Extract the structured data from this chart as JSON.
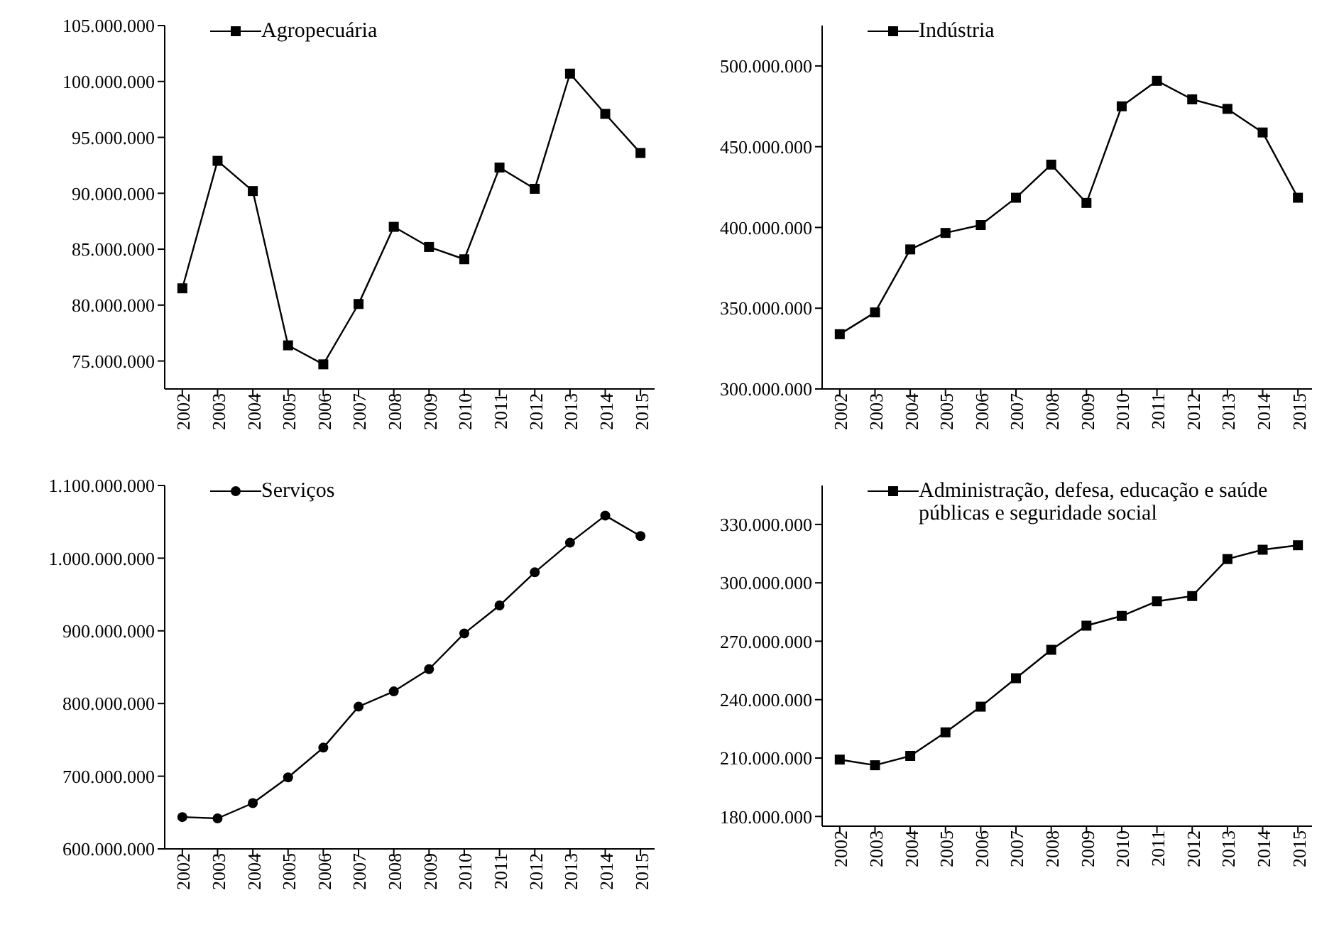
{
  "chart_data": [
    {
      "type": "line",
      "categories": [
        "2002",
        "2003",
        "2004",
        "2005",
        "2006",
        "2007",
        "2008",
        "2009",
        "2010",
        "2011",
        "2012",
        "2013",
        "2014",
        "2015"
      ],
      "series": [
        {
          "name": "Agropecuária",
          "color": "#000000",
          "values": [
            81500000,
            92900000,
            90200000,
            76400000,
            74700000,
            80100000,
            87000000,
            85200000,
            84100000,
            92300000,
            90400000,
            100700000,
            97100000,
            93600000
          ]
        }
      ],
      "ylim": [
        72500000,
        105000000
      ],
      "yticks": [
        {
          "value": 75000000,
          "label": "75.000.000"
        },
        {
          "value": 80000000,
          "label": "80.000.000"
        },
        {
          "value": 85000000,
          "label": "85.000.000"
        },
        {
          "value": 90000000,
          "label": "90.000.000"
        },
        {
          "value": 95000000,
          "label": "95.000.000"
        },
        {
          "value": 100000000,
          "label": "100.000.000"
        },
        {
          "value": 105000000,
          "label": "105.000.000"
        }
      ],
      "grid": false,
      "legend": "top",
      "marker": "square",
      "line_style": "solid"
    },
    {
      "type": "line",
      "categories": [
        "2002",
        "2003",
        "2004",
        "2005",
        "2006",
        "2007",
        "2008",
        "2009",
        "2010",
        "2011",
        "2012",
        "2013",
        "2014",
        "2015"
      ],
      "series": [
        {
          "name": "Indústria",
          "color": "#000000",
          "values": [
            333900000,
            347400000,
            386400000,
            396600000,
            401500000,
            418400000,
            438900000,
            415200000,
            475000000,
            490800000,
            479300000,
            473400000,
            458800000,
            418400000
          ]
        }
      ],
      "ylim": [
        300000000,
        525000000
      ],
      "yticks": [
        {
          "value": 300000000,
          "label": "300.000.000"
        },
        {
          "value": 350000000,
          "label": "350.000.000"
        },
        {
          "value": 400000000,
          "label": "400.000.000"
        },
        {
          "value": 450000000,
          "label": "450.000.000"
        },
        {
          "value": 500000000,
          "label": "500.000.000"
        }
      ],
      "grid": false,
      "legend": "top",
      "marker": "square",
      "line_style": "solid"
    },
    {
      "type": "line",
      "categories": [
        "2002",
        "2003",
        "2004",
        "2005",
        "2006",
        "2007",
        "2008",
        "2009",
        "2010",
        "2011",
        "2012",
        "2013",
        "2014",
        "2015"
      ],
      "series": [
        {
          "name": "Serviços",
          "color": "#000000",
          "values": [
            643800000,
            642000000,
            663000000,
            698400000,
            739300000,
            795700000,
            816700000,
            847300000,
            896500000,
            934900000,
            980500000,
            1021300000,
            1058600000,
            1030400000
          ]
        }
      ],
      "ylim": [
        600000000,
        1100000000
      ],
      "yticks": [
        {
          "value": 600000000,
          "label": "600.000.000"
        },
        {
          "value": 700000000,
          "label": "700.000.000"
        },
        {
          "value": 800000000,
          "label": "800.000.000"
        },
        {
          "value": 900000000,
          "label": "900.000.000"
        },
        {
          "value": 1000000000,
          "label": "1.000.000.000"
        },
        {
          "value": 1100000000,
          "label": "1.100.000.000"
        }
      ],
      "grid": false,
      "legend": "top",
      "marker": "circle",
      "line_style": "solid"
    },
    {
      "type": "line",
      "categories": [
        "2002",
        "2003",
        "2004",
        "2005",
        "2006",
        "2007",
        "2008",
        "2009",
        "2010",
        "2011",
        "2012",
        "2013",
        "2014",
        "2015"
      ],
      "series": [
        {
          "name": "Administração, defesa, educação e saúde públicas e seguridade social",
          "color": "#000000",
          "values": [
            209200000,
            206300000,
            211100000,
            223200000,
            236400000,
            251000000,
            265600000,
            278000000,
            283000000,
            290500000,
            293200000,
            312200000,
            317000000,
            319300000
          ]
        }
      ],
      "ylim": [
        175000000,
        350000000
      ],
      "yticks": [
        {
          "value": 180000000,
          "label": "180.000.000"
        },
        {
          "value": 210000000,
          "label": "210.000.000"
        },
        {
          "value": 240000000,
          "label": "240.000.000"
        },
        {
          "value": 270000000,
          "label": "270.000.000"
        },
        {
          "value": 300000000,
          "label": "300.000.000"
        },
        {
          "value": 330000000,
          "label": "330.000.000"
        }
      ],
      "grid": false,
      "legend": "top",
      "marker": "square",
      "line_style": "solid"
    }
  ]
}
